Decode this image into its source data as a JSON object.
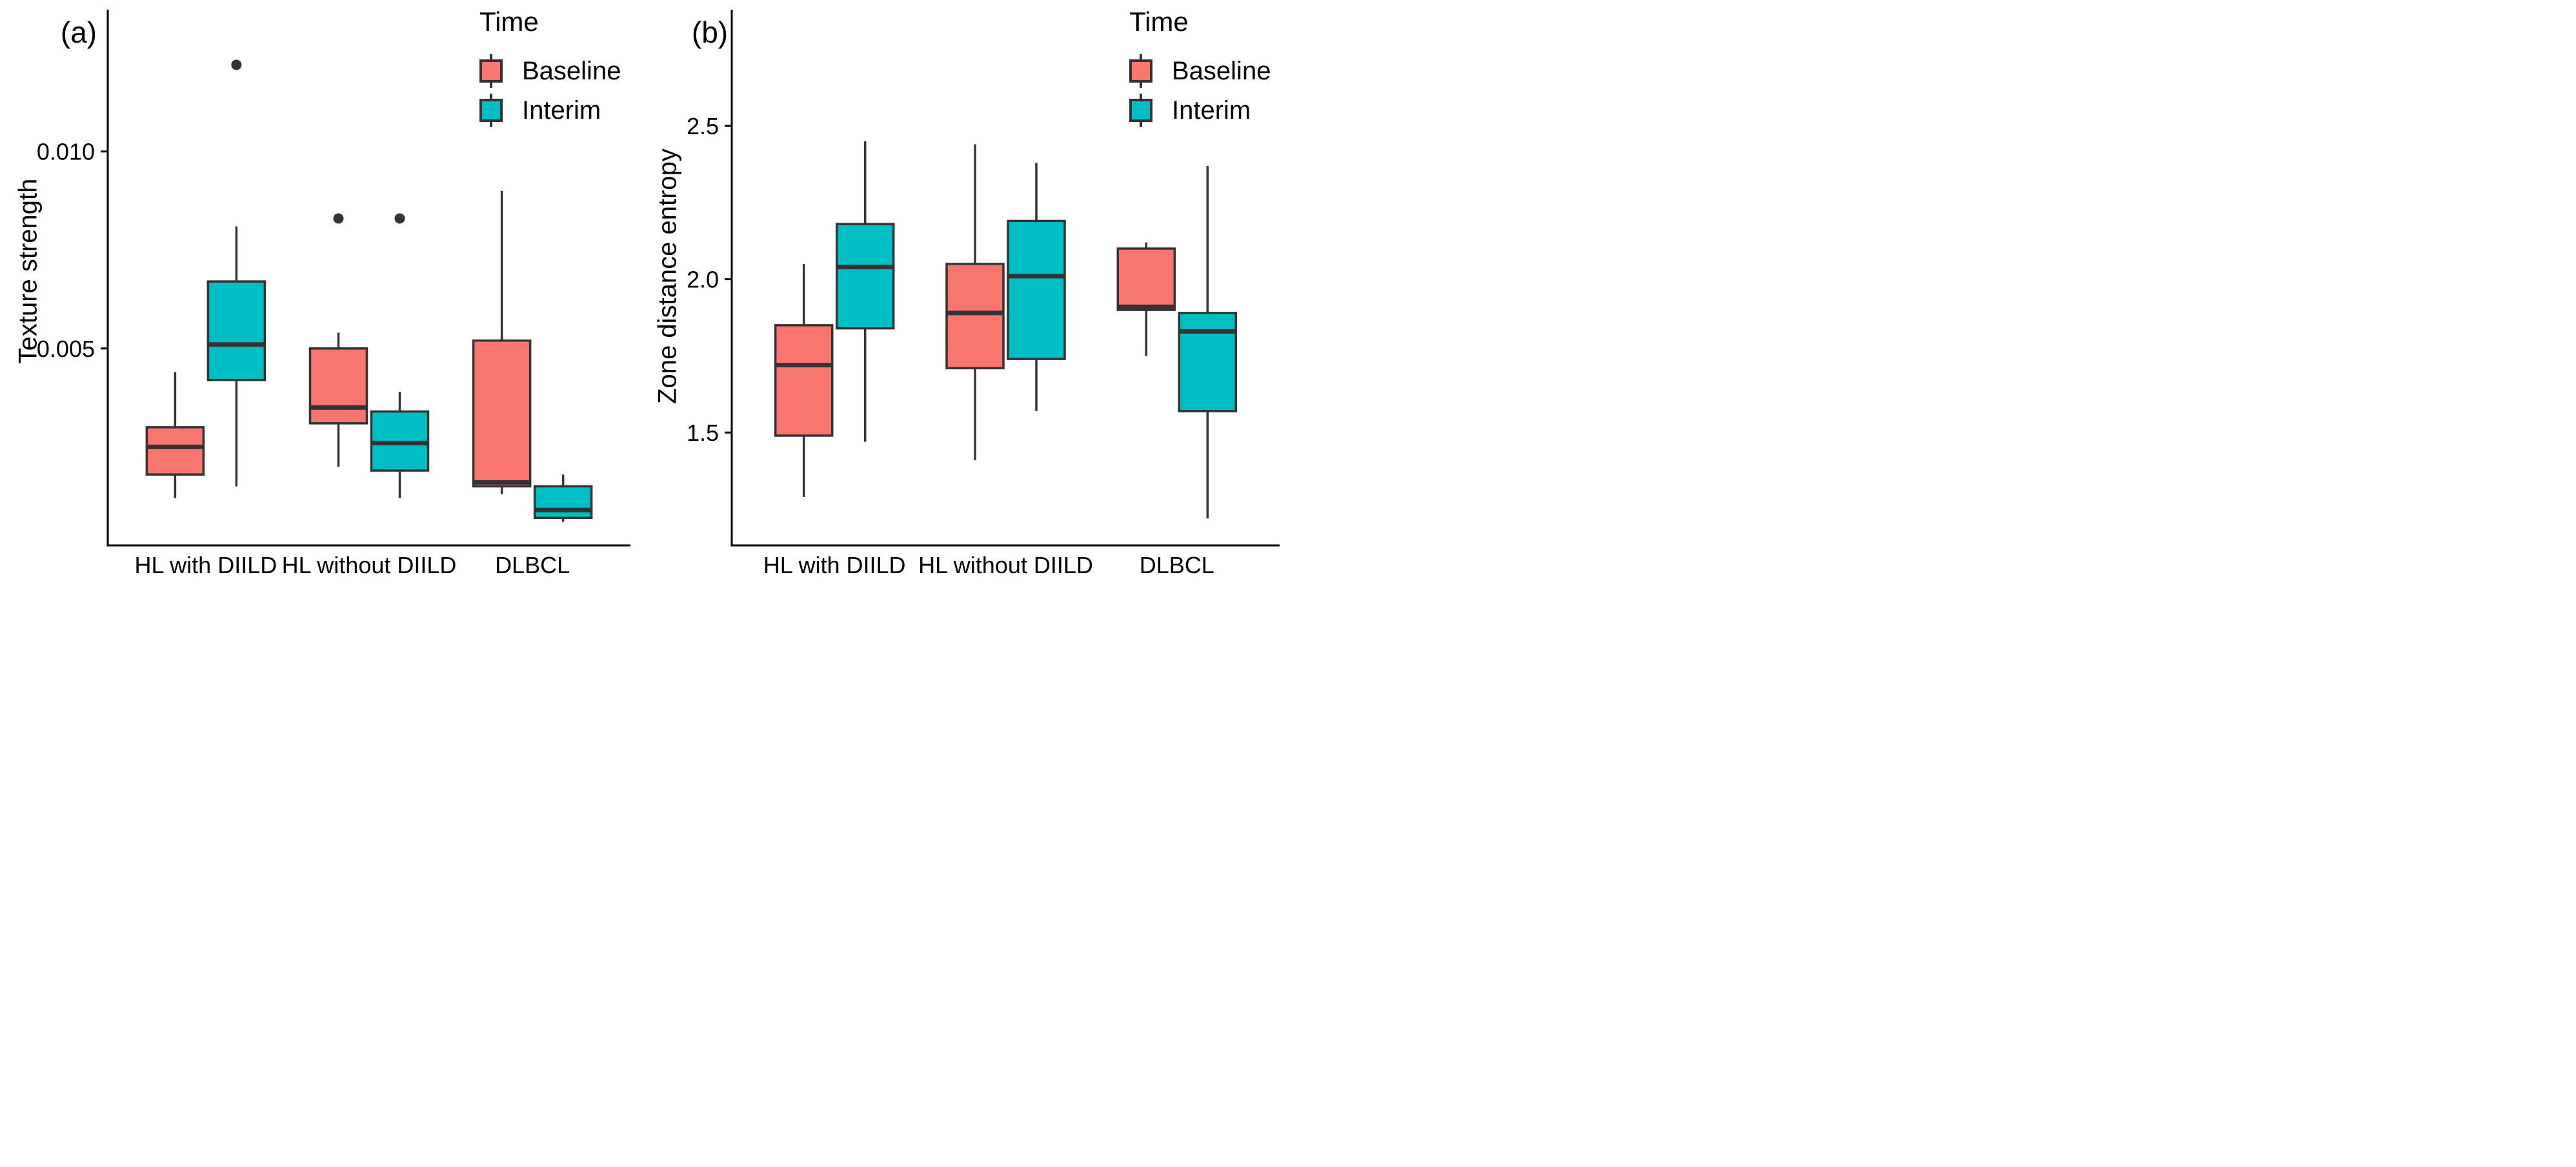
{
  "figure": {
    "background": "#ffffff"
  },
  "legend": {
    "title": "Time",
    "items": [
      {
        "label": "Baseline",
        "color": "#F8766D"
      },
      {
        "label": "Interim",
        "color": "#00BFC4"
      }
    ]
  },
  "colors": {
    "baseline_fill": "#F8766D",
    "interim_fill": "#00BFC4",
    "stroke": "#333333",
    "axis": "#000000",
    "outlier": "#333333",
    "text": "#000000"
  },
  "chart_data": [
    {
      "type": "boxplot",
      "tag": "(a)",
      "ylabel": "Texture strength",
      "xlabel": "",
      "categories": [
        "HL with DIILD",
        "HL without DIILD",
        "DLBCL"
      ],
      "yticks": [
        {
          "value": 0.005,
          "label": "0.005"
        },
        {
          "value": 0.01,
          "label": "0.010"
        }
      ],
      "ylim": [
        0.0,
        0.0136
      ],
      "grid": "off",
      "legend_position": "top-right-inside",
      "series": [
        {
          "name": "Baseline",
          "boxes": [
            {
              "lo": 0.0012,
              "q1": 0.0018,
              "med": 0.0025,
              "q3": 0.003,
              "hi": 0.0044,
              "outliers": []
            },
            {
              "lo": 0.002,
              "q1": 0.0031,
              "med": 0.0035,
              "q3": 0.005,
              "hi": 0.0054,
              "outliers": [
                0.0083
              ]
            },
            {
              "lo": 0.0013,
              "q1": 0.0015,
              "med": 0.0016,
              "q3": 0.0052,
              "hi": 0.009,
              "outliers": []
            }
          ]
        },
        {
          "name": "Interim",
          "boxes": [
            {
              "lo": 0.0015,
              "q1": 0.0042,
              "med": 0.0051,
              "q3": 0.0067,
              "hi": 0.0081,
              "outliers": [
                0.0122
              ]
            },
            {
              "lo": 0.0012,
              "q1": 0.0019,
              "med": 0.0026,
              "q3": 0.0034,
              "hi": 0.0039,
              "outliers": [
                0.0083
              ]
            },
            {
              "lo": 0.0006,
              "q1": 0.0007,
              "med": 0.0009,
              "q3": 0.0015,
              "hi": 0.0018,
              "outliers": []
            }
          ]
        }
      ]
    },
    {
      "type": "boxplot",
      "tag": "(b)",
      "ylabel": "Zone distance entropy",
      "xlabel": "",
      "categories": [
        "HL with DIILD",
        "HL without DIILD",
        "DLBCL"
      ],
      "yticks": [
        {
          "value": 1.5,
          "label": "1.5"
        },
        {
          "value": 2.0,
          "label": "2.0"
        },
        {
          "value": 2.5,
          "label": "2.5"
        }
      ],
      "ylim": [
        1.132,
        2.879
      ],
      "grid": "off",
      "legend_position": "top-right-inside",
      "series": [
        {
          "name": "Baseline",
          "boxes": [
            {
              "lo": 1.29,
              "q1": 1.49,
              "med": 1.72,
              "q3": 1.85,
              "hi": 2.05,
              "outliers": []
            },
            {
              "lo": 1.41,
              "q1": 1.71,
              "med": 1.89,
              "q3": 2.05,
              "hi": 2.44,
              "outliers": []
            },
            {
              "lo": 1.75,
              "q1": 1.9,
              "med": 1.91,
              "q3": 2.1,
              "hi": 2.12,
              "outliers": []
            }
          ]
        },
        {
          "name": "Interim",
          "boxes": [
            {
              "lo": 1.47,
              "q1": 1.84,
              "med": 2.04,
              "q3": 2.18,
              "hi": 2.45,
              "outliers": []
            },
            {
              "lo": 1.57,
              "q1": 1.74,
              "med": 2.01,
              "q3": 2.19,
              "hi": 2.38,
              "outliers": []
            },
            {
              "lo": 1.22,
              "q1": 1.57,
              "med": 1.83,
              "q3": 1.89,
              "hi": 2.37,
              "outliers": []
            }
          ]
        }
      ]
    }
  ]
}
